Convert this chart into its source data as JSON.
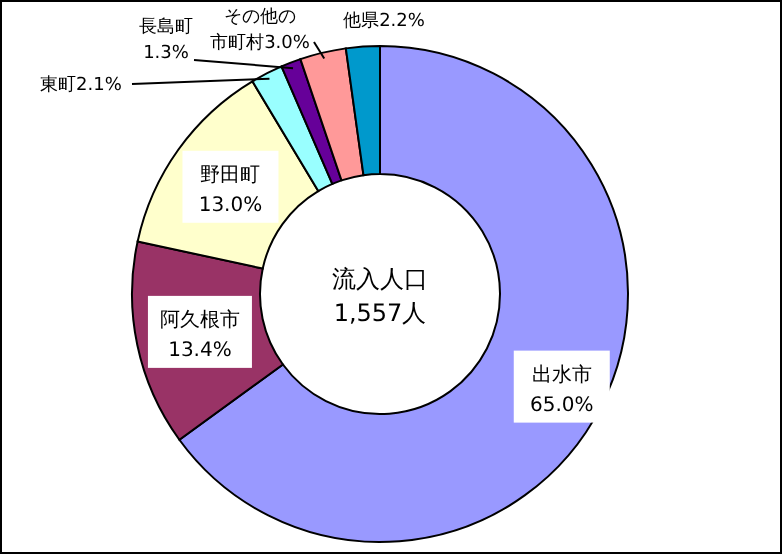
{
  "chart_data": {
    "type": "donut",
    "categories": [
      "出水市",
      "阿久根市",
      "野田町",
      "東町",
      "長島町",
      "その他の市町村",
      "他県"
    ],
    "values": [
      65.0,
      13.4,
      13.0,
      2.1,
      1.3,
      3.0,
      2.2
    ],
    "value_labels": [
      "65.0%",
      "13.4%",
      "13.0%",
      "2.1%",
      "1.3%",
      "3.0%",
      "2.2%"
    ],
    "colors": [
      "#9999ff",
      "#993366",
      "#ffffcc",
      "#99ffff",
      "#660099",
      "#ff9999",
      "#0099cc"
    ],
    "annotations": [
      "流入人口",
      "1,557人"
    ]
  }
}
